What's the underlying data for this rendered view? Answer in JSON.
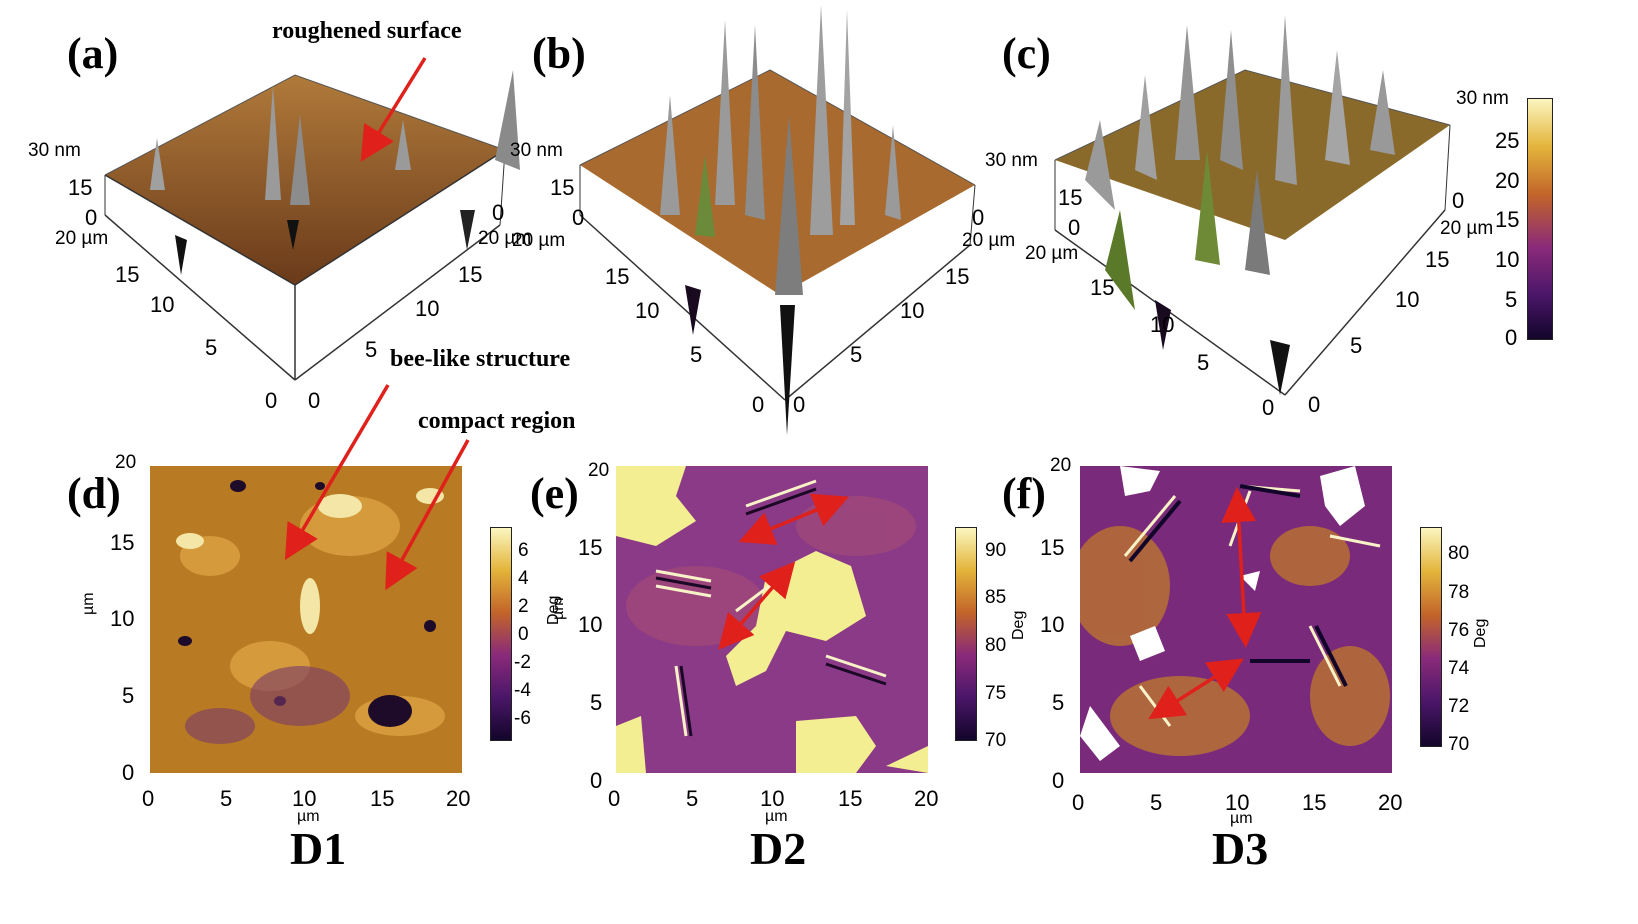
{
  "panels": [
    {
      "id": "a",
      "label": "(a)",
      "z_label": "30 nm",
      "z_ticks": [
        "15",
        "0"
      ],
      "x_label": "20 µm",
      "x_ticks": [
        "15",
        "10",
        "5",
        "0"
      ],
      "y_ticks": [
        "0",
        "5",
        "10",
        "15"
      ],
      "y_end": "20 µm",
      "side_zero": "0"
    },
    {
      "id": "b",
      "label": "(b)",
      "z_label": "30 nm",
      "z_ticks": [
        "15",
        "0"
      ],
      "x_label": "20 µm",
      "x_ticks": [
        "15",
        "10",
        "5",
        "0"
      ],
      "y_ticks": [
        "0",
        "5",
        "10",
        "15"
      ],
      "y_end": "20 µm",
      "side_zero": "0"
    },
    {
      "id": "c",
      "label": "(c)",
      "z_label": "30 nm",
      "z_ticks": [
        "15",
        "0"
      ],
      "x_label": "20 µm",
      "x_ticks": [
        "15",
        "10",
        "5",
        "0"
      ],
      "y_ticks": [
        "0",
        "5",
        "10",
        "15"
      ],
      "y_end": "20 µm",
      "side_zero": "0"
    },
    {
      "id": "d",
      "label": "(d)",
      "ticks": [
        "0",
        "5",
        "10",
        "15",
        "20"
      ],
      "axis_unit": "µm",
      "colorbar_ticks": [
        "6",
        "4",
        "2",
        "0",
        "-2",
        "-4",
        "-6"
      ],
      "colorbar_unit": "Deg"
    },
    {
      "id": "e",
      "label": "(e)",
      "ticks": [
        "0",
        "5",
        "10",
        "15",
        "20"
      ],
      "axis_unit": "µm",
      "colorbar_ticks": [
        "90",
        "85",
        "80",
        "75",
        "70"
      ],
      "colorbar_unit": "Deg"
    },
    {
      "id": "f",
      "label": "(f)",
      "ticks": [
        "0",
        "5",
        "10",
        "15",
        "20"
      ],
      "axis_unit": "µm",
      "colorbar_ticks": [
        "80",
        "78",
        "76",
        "74",
        "72",
        "70"
      ],
      "colorbar_unit": "Deg"
    }
  ],
  "height_colorbar": {
    "ticks": [
      "30 nm",
      "25",
      "20",
      "15",
      "10",
      "5",
      "0"
    ]
  },
  "annotations": {
    "roughened": "roughened surface",
    "bee_like": "bee-like structure",
    "compact": "compact region"
  },
  "samples": [
    "D1",
    "D2",
    "D3"
  ],
  "colors": {
    "afm_dark": "#1a0a33",
    "afm_purple": "#7a2a86",
    "afm_orange": "#d2861e",
    "afm_yellow": "#f6f0a8",
    "arrow_red": "#e0201a"
  }
}
